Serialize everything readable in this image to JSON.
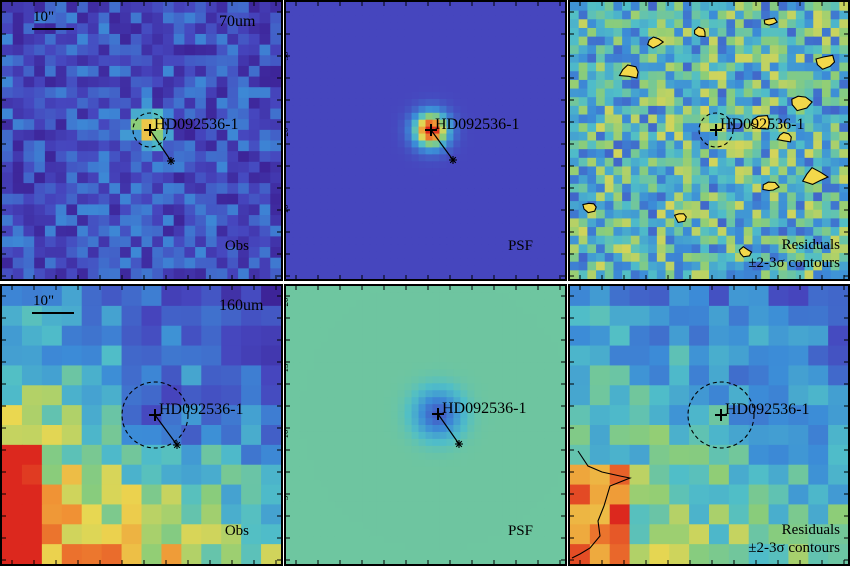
{
  "panels": [
    {
      "id": "p1",
      "kind": "obs",
      "band": "70um",
      "scale_label": "10\"",
      "target": "HD092536-1",
      "caption": "Obs",
      "caption2": "",
      "palette": "obs70"
    },
    {
      "id": "p2",
      "kind": "psf",
      "band": "",
      "scale_label": "",
      "target": "HD092536-1",
      "caption": "PSF",
      "caption2": "",
      "palette": "psf70"
    },
    {
      "id": "p3",
      "kind": "resid",
      "band": "",
      "scale_label": "",
      "target": "HD092536-1",
      "caption": "Residuals",
      "caption2": "±2-3σ contours",
      "palette": "res70"
    },
    {
      "id": "p4",
      "kind": "obs",
      "band": "160um",
      "scale_label": "10\"",
      "target": "HD092536-1",
      "caption": "Obs",
      "caption2": "",
      "palette": "obs160"
    },
    {
      "id": "p5",
      "kind": "psf",
      "band": "",
      "scale_label": "",
      "target": "HD092536-1",
      "caption": "PSF",
      "caption2": "",
      "palette": "psf160"
    },
    {
      "id": "p6",
      "kind": "resid",
      "band": "",
      "scale_label": "",
      "target": "HD092536-1",
      "caption": "Residuals",
      "caption2": "±2-3σ contours",
      "palette": "res160"
    }
  ],
  "axis_ticks_row1": [
    "10",
    "20",
    "30"
  ],
  "axis_ticks_row2": [
    "5",
    "10",
    "15",
    "20"
  ],
  "colors": {
    "low": "#3b1f8c",
    "mid": "#3aa0d8",
    "high": "#f5d63a",
    "peak": "#e23c1b",
    "psf_bg": "#3a5bb0",
    "psf_bg2": "#6fbf86"
  }
}
